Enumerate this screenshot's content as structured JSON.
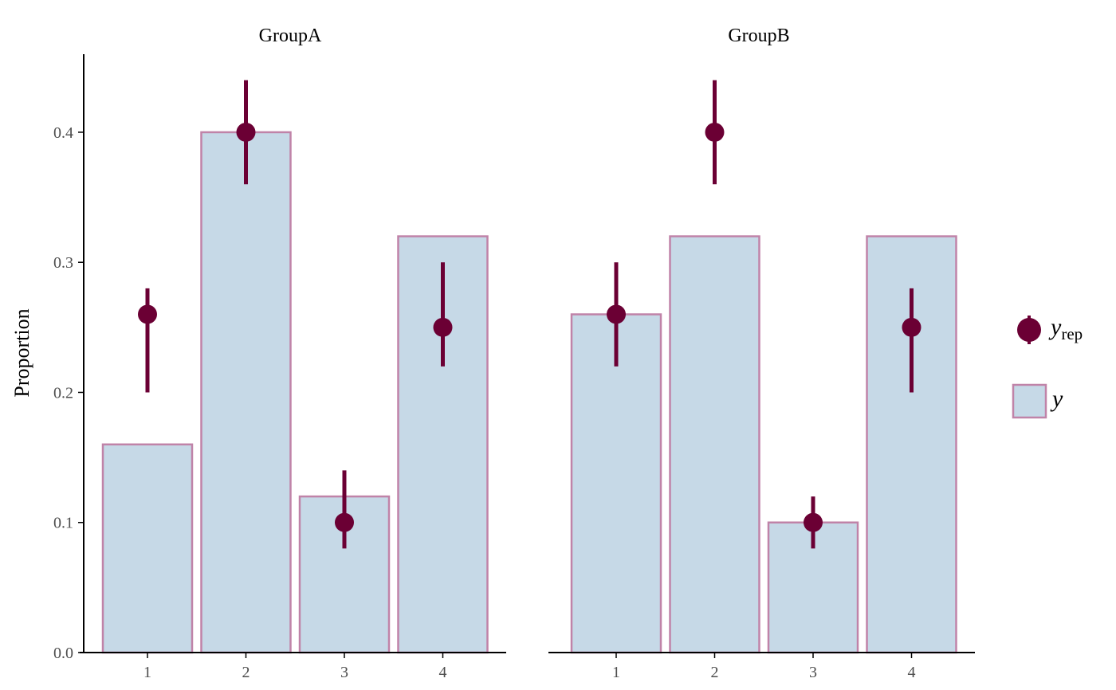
{
  "chart_data": {
    "type": "bar",
    "ylabel": "Proportion",
    "ylim": [
      0,
      0.46
    ],
    "y_ticks": [
      "0.0",
      "0.1",
      "0.2",
      "0.3",
      "0.4"
    ],
    "categories": [
      "1",
      "2",
      "3",
      "4"
    ],
    "grid": false,
    "legend_placement": "right",
    "legend": {
      "yrep_main": "y",
      "yrep_sub": "rep",
      "y": "y"
    },
    "colors": {
      "bar_fill": "#c6d9e7",
      "bar_stroke": "#c083a8",
      "point": "#6b0034",
      "axis": "#000000"
    },
    "panels": [
      {
        "title": "GroupA",
        "y": [
          0.16,
          0.4,
          0.12,
          0.32
        ],
        "yrep": [
          {
            "x": "1",
            "mid": 0.26,
            "low": 0.2,
            "high": 0.28
          },
          {
            "x": "2",
            "mid": 0.4,
            "low": 0.36,
            "high": 0.44
          },
          {
            "x": "3",
            "mid": 0.1,
            "low": 0.08,
            "high": 0.14
          },
          {
            "x": "4",
            "mid": 0.25,
            "low": 0.22,
            "high": 0.3
          }
        ]
      },
      {
        "title": "GroupB",
        "y": [
          0.26,
          0.32,
          0.1,
          0.32
        ],
        "yrep": [
          {
            "x": "1",
            "mid": 0.26,
            "low": 0.22,
            "high": 0.3
          },
          {
            "x": "2",
            "mid": 0.4,
            "low": 0.36,
            "high": 0.44
          },
          {
            "x": "3",
            "mid": 0.1,
            "low": 0.08,
            "high": 0.12
          },
          {
            "x": "4",
            "mid": 0.25,
            "low": 0.2,
            "high": 0.28
          }
        ]
      }
    ]
  }
}
